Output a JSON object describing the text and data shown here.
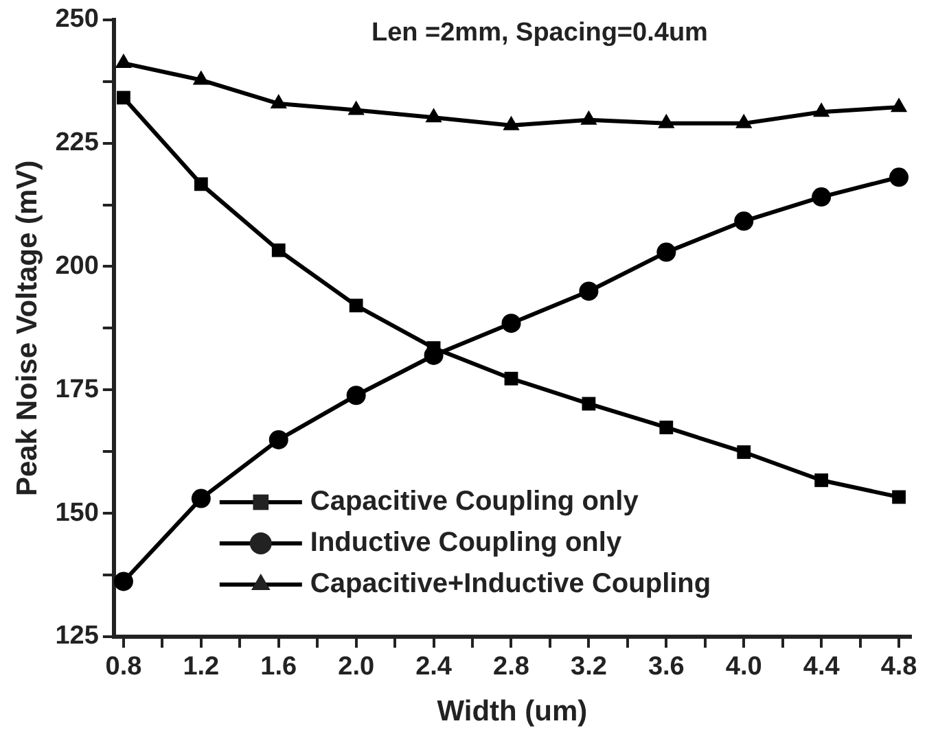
{
  "chart_data": {
    "type": "line",
    "title": "Len =2mm, Spacing=0.4um",
    "xlabel": "Width (um)",
    "ylabel": "Peak Noise Voltage (mV)",
    "x": [
      0.8,
      1.2,
      1.6,
      2.0,
      2.4,
      2.8,
      3.2,
      3.6,
      4.0,
      4.4,
      4.8
    ],
    "series": [
      {
        "name": "Capacitive Coupling only",
        "color": "#000000",
        "marker": "square",
        "values": [
          234.2,
          216.7,
          203.3,
          192.1,
          183.5,
          177.3,
          172.2,
          167.4,
          162.4,
          156.7,
          153.3
        ]
      },
      {
        "name": "Inductive Coupling only",
        "color": "#000000",
        "marker": "circle",
        "values": [
          136.2,
          153.0,
          164.9,
          173.9,
          182.0,
          188.5,
          195.0,
          202.9,
          209.2,
          214.1,
          218.1
        ]
      },
      {
        "name": "Capacitive+Inductive Coupling",
        "color": "#000000",
        "marker": "triangle",
        "values": [
          241.2,
          237.8,
          233.0,
          231.7,
          230.2,
          228.6,
          229.7,
          229.0,
          229.0,
          231.3,
          232.3
        ]
      }
    ],
    "xlim": [
      0.75,
      4.86
    ],
    "xticks": [
      0.8,
      {
        "value": 1.0,
        "label": null
      },
      1.2,
      {
        "value": 1.4,
        "label": null
      },
      1.6,
      {
        "value": 1.8,
        "label": null
      },
      {
        "value": 2,
        "label": "2.0"
      },
      {
        "value": 2.2,
        "label": null
      },
      2.4,
      {
        "value": 2.6,
        "label": null
      },
      2.8,
      {
        "value": 3.0,
        "label": null
      },
      3.2,
      {
        "value": 3.4,
        "label": null
      },
      3.6,
      {
        "value": 3.8,
        "label": null
      },
      {
        "value": 4,
        "label": "4.0"
      },
      {
        "value": 4.2,
        "label": null
      },
      4.4,
      {
        "value": 4.6,
        "label": null
      },
      4.8
    ],
    "ylim": [
      125,
      250
    ],
    "yticks": [
      125,
      {
        "value": 137.5,
        "label": null
      },
      150,
      {
        "value": 162.5,
        "label": null
      },
      175,
      {
        "value": 187.5,
        "label": null
      },
      200,
      {
        "value": 212.5,
        "label": null
      },
      225,
      {
        "value": 237.5,
        "label": null
      },
      250
    ],
    "grid": false,
    "legend": "bottom",
    "line_style": "solid"
  }
}
